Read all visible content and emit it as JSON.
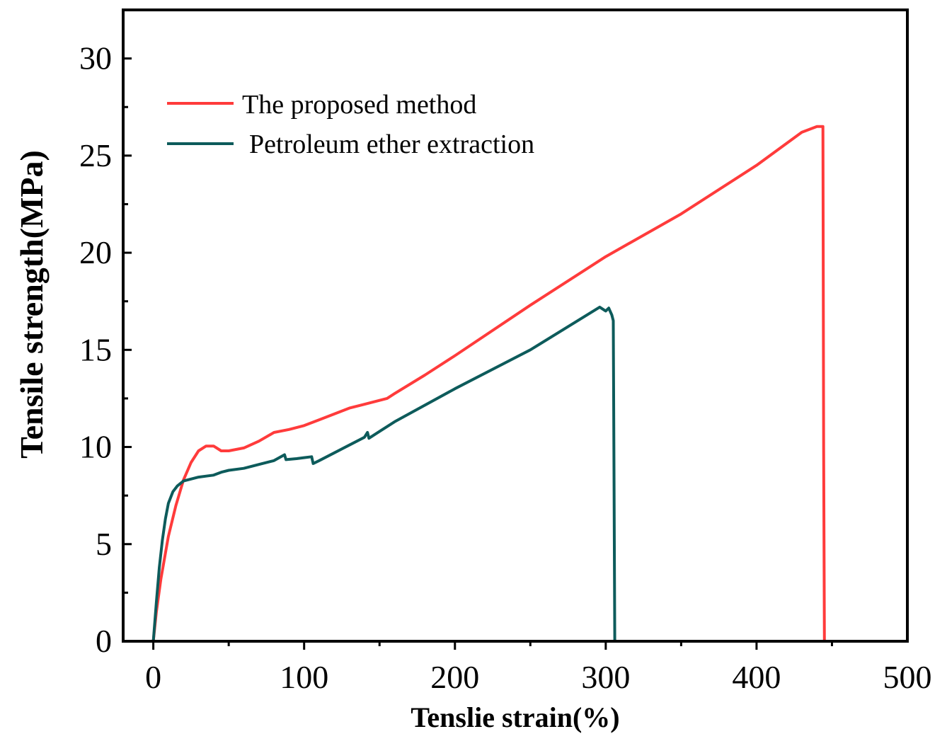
{
  "chart_data": {
    "type": "line",
    "title": "",
    "xlabel": "Tenslie strain(%)",
    "ylabel": "Tensile strength(MPa)",
    "xlim": [
      -20,
      500
    ],
    "ylim": [
      0,
      32.5
    ],
    "x_ticks": [
      0,
      100,
      200,
      300,
      400,
      500
    ],
    "y_ticks": [
      0,
      5,
      10,
      15,
      20,
      25,
      30
    ],
    "x_tick_labels": [
      "0",
      "100",
      "200",
      "300",
      "400",
      "500"
    ],
    "y_tick_labels": [
      "0",
      "5",
      "10",
      "15",
      "20",
      "25",
      "30"
    ],
    "legend_position": "top-left",
    "grid": false,
    "series": [
      {
        "name": "The proposed method",
        "color": "#ff3b3b",
        "x": [
          0,
          2,
          5,
          10,
          15,
          20,
          25,
          30,
          35,
          40,
          45,
          50,
          60,
          70,
          80,
          90,
          100,
          110,
          120,
          130,
          140,
          150,
          155,
          160,
          180,
          200,
          250,
          300,
          350,
          400,
          430,
          440,
          444,
          444.5,
          445
        ],
        "y": [
          0,
          1.5,
          3.2,
          5.4,
          7.0,
          8.3,
          9.2,
          9.8,
          10.05,
          10.05,
          9.8,
          9.8,
          9.95,
          10.3,
          10.75,
          10.9,
          11.1,
          11.4,
          11.7,
          12.0,
          12.2,
          12.4,
          12.5,
          12.75,
          13.7,
          14.7,
          17.3,
          19.8,
          22.0,
          24.5,
          26.2,
          26.5,
          26.5,
          10,
          0
        ]
      },
      {
        "name": "Petroleum ether extraction",
        "color": "#0d5b5b",
        "x": [
          0,
          2,
          4,
          6,
          8,
          10,
          13,
          16,
          20,
          25,
          30,
          35,
          40,
          45,
          50,
          60,
          70,
          80,
          87,
          88,
          95,
          100,
          105,
          106,
          110,
          120,
          130,
          140,
          142,
          143,
          150,
          160,
          200,
          250,
          296,
          300,
          302,
          304,
          305,
          305.5,
          306
        ],
        "y": [
          0,
          2.0,
          3.8,
          5.2,
          6.3,
          7.1,
          7.7,
          8.0,
          8.25,
          8.35,
          8.45,
          8.5,
          8.55,
          8.7,
          8.8,
          8.9,
          9.1,
          9.3,
          9.6,
          9.35,
          9.4,
          9.45,
          9.5,
          9.15,
          9.3,
          9.7,
          10.1,
          10.5,
          10.75,
          10.45,
          10.8,
          11.3,
          13.0,
          15.0,
          17.2,
          17.0,
          17.15,
          16.8,
          16.5,
          8,
          0
        ]
      }
    ]
  }
}
